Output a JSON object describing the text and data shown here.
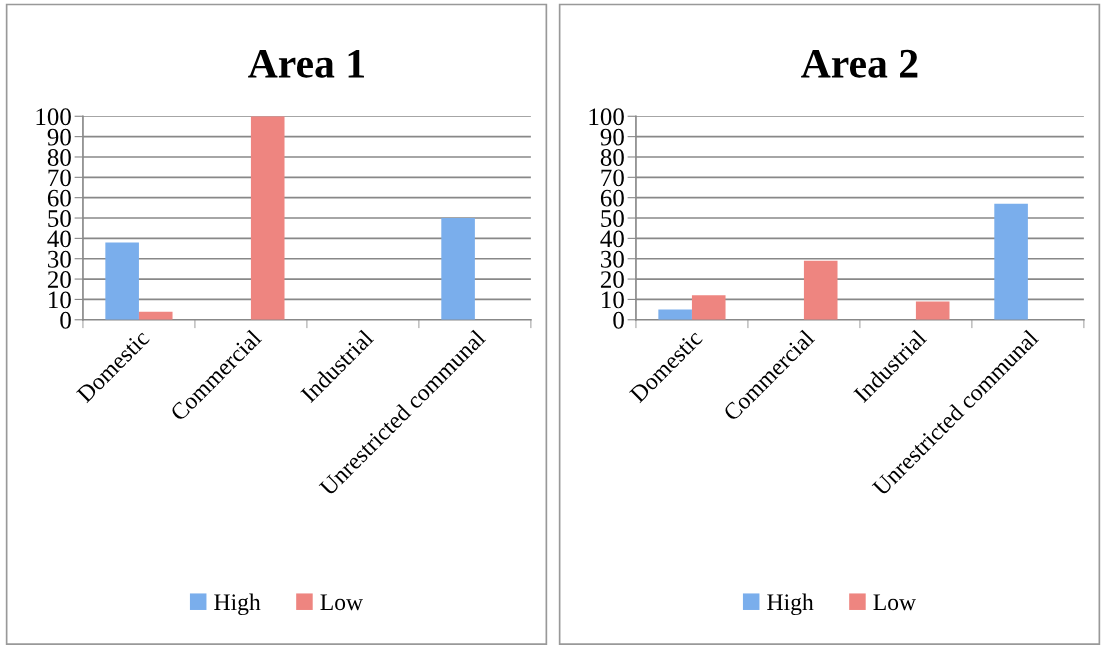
{
  "chart_data": [
    {
      "type": "bar",
      "title": "Area 1",
      "categories": [
        "Domestic",
        "Commercial",
        "Industrial",
        "Unrestricted communal"
      ],
      "series": [
        {
          "name": "High",
          "color": "#7aaeec",
          "values": [
            38,
            0,
            0,
            50
          ]
        },
        {
          "name": "Low",
          "color": "#ee8580",
          "values": [
            4,
            100,
            0,
            0
          ]
        }
      ],
      "ylim": [
        0,
        100
      ],
      "yticks": [
        0,
        10,
        20,
        30,
        40,
        50,
        60,
        70,
        80,
        90,
        100
      ],
      "grid": "y",
      "legend": "bottom"
    },
    {
      "type": "bar",
      "title": "Area 2",
      "categories": [
        "Domestic",
        "Commercial",
        "Industrial",
        "Unrestricted communal"
      ],
      "series": [
        {
          "name": "High",
          "color": "#7aaeec",
          "values": [
            5,
            0,
            0,
            57
          ]
        },
        {
          "name": "Low",
          "color": "#ee8580",
          "values": [
            12,
            29,
            9,
            0
          ]
        }
      ],
      "ylim": [
        0,
        100
      ],
      "yticks": [
        0,
        10,
        20,
        30,
        40,
        50,
        60,
        70,
        80,
        90,
        100
      ],
      "grid": "y",
      "legend": "bottom"
    }
  ]
}
